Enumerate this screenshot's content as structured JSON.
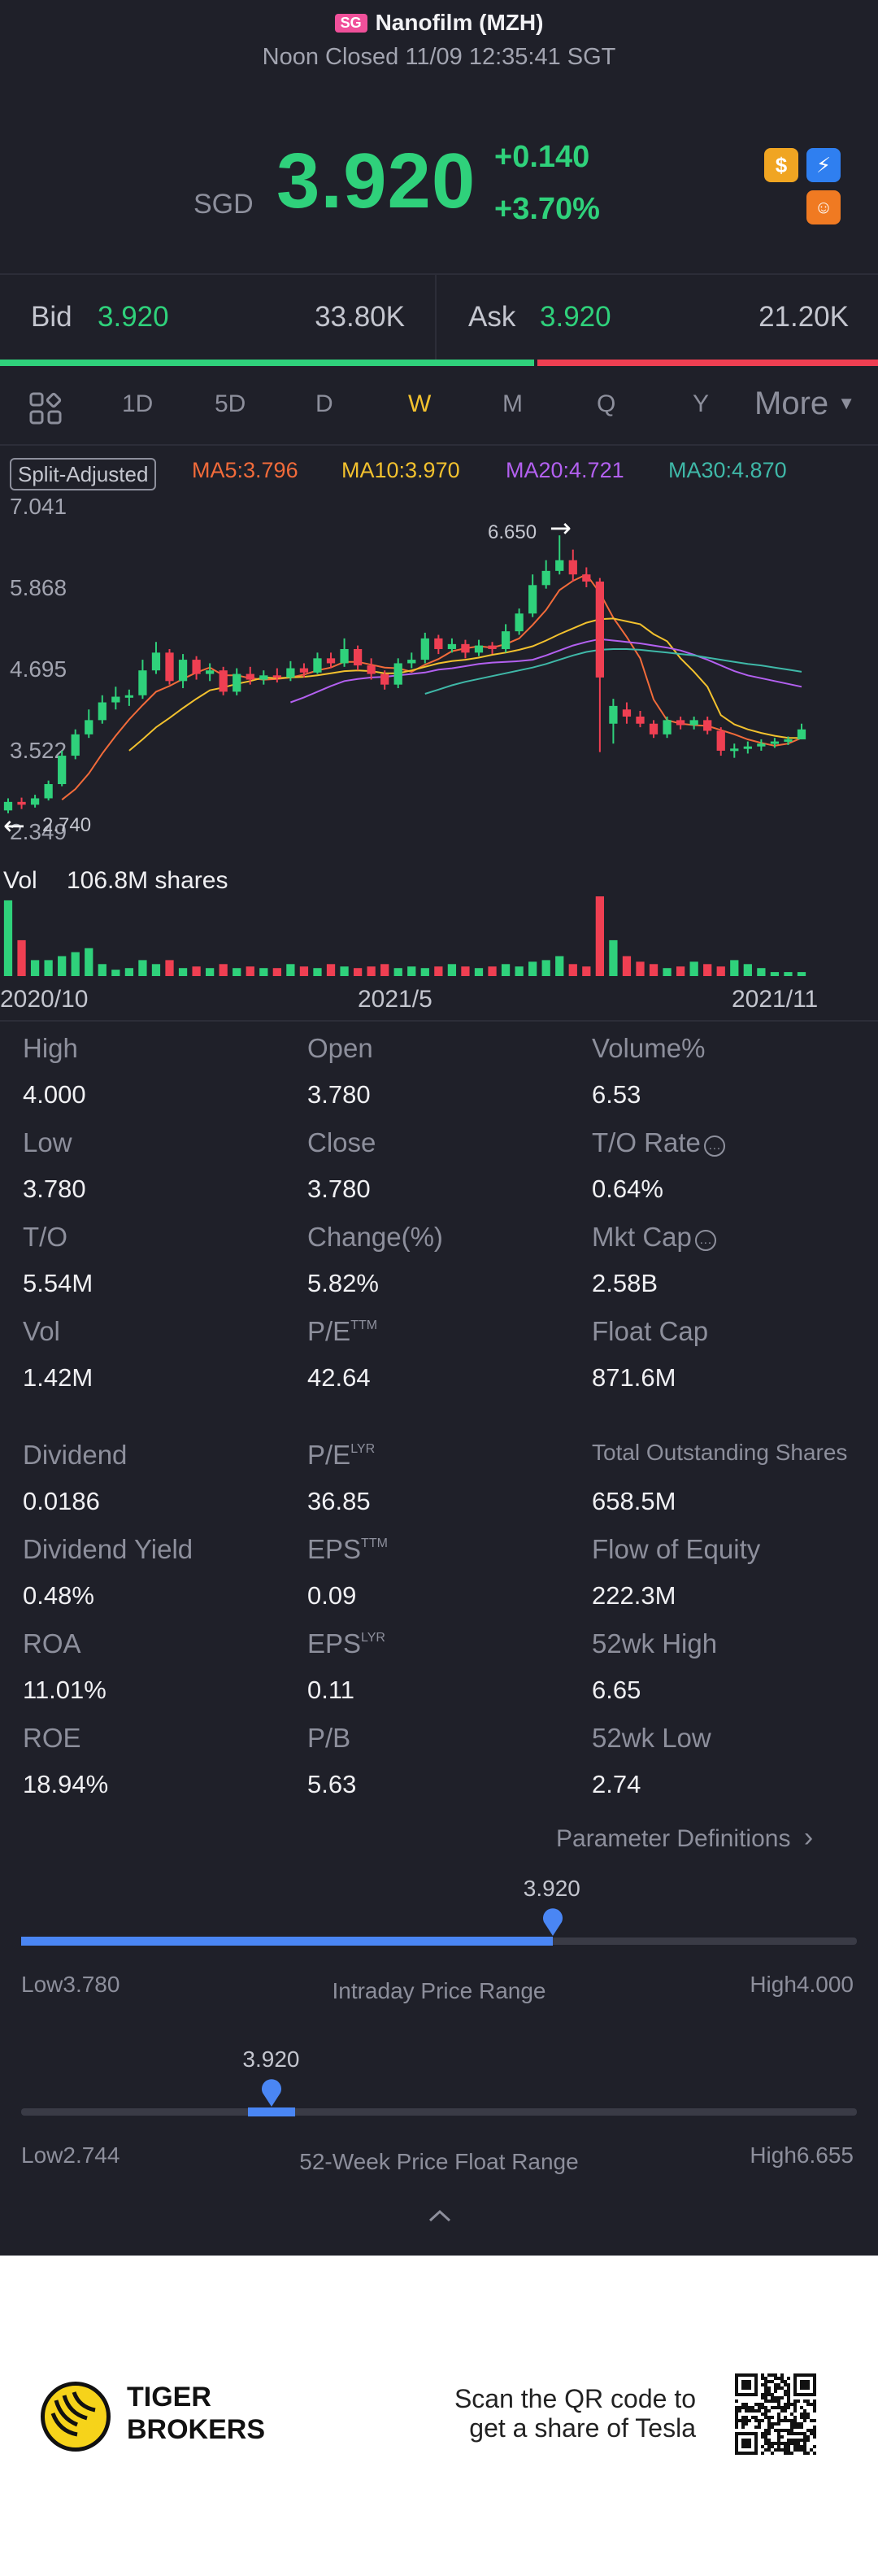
{
  "header": {
    "market_badge": "SG",
    "title": "Nanofilm (MZH)",
    "status": "Noon Closed 11/09 12:35:41 SGT"
  },
  "quote": {
    "currency": "SGD",
    "price": "3.920",
    "change": "+0.140",
    "change_pct": "+3.70%"
  },
  "bidask": {
    "bid_label": "Bid",
    "bid_price": "3.920",
    "bid_size": "33.80K",
    "ask_label": "Ask",
    "ask_price": "3.920",
    "ask_size": "21.20K",
    "bid_ratio": 0.61
  },
  "tabs": {
    "items": [
      "1D",
      "5D",
      "D",
      "W",
      "M",
      "Q",
      "Y"
    ],
    "active": "W",
    "more": "More"
  },
  "chart": {
    "split_label": "Split-Adjusted",
    "ma5": "MA5:3.796",
    "ma10": "MA10:3.970",
    "ma20": "MA20:4.721",
    "ma30": "MA30:4.870",
    "y_ticks": [
      "7.041",
      "5.868",
      "4.695",
      "3.522",
      "2.349"
    ],
    "high_marker": "6.650",
    "low_marker": "2.740",
    "vol_label": "Vol",
    "vol_value": "106.8M shares",
    "x_ticks": [
      "2020/10",
      "2021/5",
      "2021/11"
    ],
    "colors": {
      "up": "#2fd17b",
      "down": "#ef3f52",
      "ma5": "#f26b3a",
      "ma10": "#f2c12e",
      "ma20": "#b360f0",
      "ma30": "#3fb8a8"
    }
  },
  "chart_data": {
    "type": "candlestick",
    "ylim": [
      2.349,
      7.041
    ],
    "x_ticks": [
      "2020/10",
      "2021/5",
      "2021/11"
    ],
    "candles": [
      {
        "o": 2.78,
        "c": 2.9,
        "h": 2.95,
        "l": 2.74
      },
      {
        "o": 2.9,
        "c": 2.86,
        "h": 2.96,
        "l": 2.8
      },
      {
        "o": 2.86,
        "c": 2.95,
        "h": 3.0,
        "l": 2.82
      },
      {
        "o": 2.95,
        "c": 3.15,
        "h": 3.2,
        "l": 2.92
      },
      {
        "o": 3.15,
        "c": 3.55,
        "h": 3.62,
        "l": 3.12
      },
      {
        "o": 3.55,
        "c": 3.85,
        "h": 3.92,
        "l": 3.5
      },
      {
        "o": 3.85,
        "c": 4.05,
        "h": 4.2,
        "l": 3.8
      },
      {
        "o": 4.05,
        "c": 4.3,
        "h": 4.4,
        "l": 4.0
      },
      {
        "o": 4.3,
        "c": 4.38,
        "h": 4.52,
        "l": 4.2
      },
      {
        "o": 4.38,
        "c": 4.4,
        "h": 4.48,
        "l": 4.25
      },
      {
        "o": 4.4,
        "c": 4.75,
        "h": 4.9,
        "l": 4.35
      },
      {
        "o": 4.75,
        "c": 5.0,
        "h": 5.15,
        "l": 4.7
      },
      {
        "o": 5.0,
        "c": 4.6,
        "h": 5.05,
        "l": 4.55
      },
      {
        "o": 4.6,
        "c": 4.9,
        "h": 4.98,
        "l": 4.5
      },
      {
        "o": 4.9,
        "c": 4.7,
        "h": 4.95,
        "l": 4.62
      },
      {
        "o": 4.7,
        "c": 4.75,
        "h": 4.85,
        "l": 4.6
      },
      {
        "o": 4.75,
        "c": 4.45,
        "h": 4.8,
        "l": 4.4
      },
      {
        "o": 4.45,
        "c": 4.7,
        "h": 4.78,
        "l": 4.4
      },
      {
        "o": 4.7,
        "c": 4.62,
        "h": 4.8,
        "l": 4.55
      },
      {
        "o": 4.62,
        "c": 4.68,
        "h": 4.75,
        "l": 4.55
      },
      {
        "o": 4.68,
        "c": 4.65,
        "h": 4.78,
        "l": 4.58
      },
      {
        "o": 4.65,
        "c": 4.78,
        "h": 4.88,
        "l": 4.6
      },
      {
        "o": 4.78,
        "c": 4.72,
        "h": 4.85,
        "l": 4.65
      },
      {
        "o": 4.72,
        "c": 4.92,
        "h": 5.0,
        "l": 4.7
      },
      {
        "o": 4.92,
        "c": 4.85,
        "h": 5.0,
        "l": 4.78
      },
      {
        "o": 4.85,
        "c": 5.05,
        "h": 5.2,
        "l": 4.8
      },
      {
        "o": 5.05,
        "c": 4.82,
        "h": 5.1,
        "l": 4.75
      },
      {
        "o": 4.82,
        "c": 4.7,
        "h": 4.92,
        "l": 4.62
      },
      {
        "o": 4.7,
        "c": 4.55,
        "h": 4.75,
        "l": 4.48
      },
      {
        "o": 4.55,
        "c": 4.85,
        "h": 4.92,
        "l": 4.5
      },
      {
        "o": 4.85,
        "c": 4.9,
        "h": 5.0,
        "l": 4.78
      },
      {
        "o": 4.9,
        "c": 5.2,
        "h": 5.28,
        "l": 4.85
      },
      {
        "o": 5.2,
        "c": 5.05,
        "h": 5.25,
        "l": 4.98
      },
      {
        "o": 5.05,
        "c": 5.12,
        "h": 5.2,
        "l": 5.0
      },
      {
        "o": 5.12,
        "c": 5.0,
        "h": 5.18,
        "l": 4.92
      },
      {
        "o": 5.0,
        "c": 5.1,
        "h": 5.18,
        "l": 4.95
      },
      {
        "o": 5.1,
        "c": 5.05,
        "h": 5.15,
        "l": 4.98
      },
      {
        "o": 5.05,
        "c": 5.3,
        "h": 5.4,
        "l": 5.0
      },
      {
        "o": 5.3,
        "c": 5.55,
        "h": 5.62,
        "l": 5.25
      },
      {
        "o": 5.55,
        "c": 5.95,
        "h": 6.1,
        "l": 5.5
      },
      {
        "o": 5.95,
        "c": 6.15,
        "h": 6.3,
        "l": 5.9
      },
      {
        "o": 6.15,
        "c": 6.3,
        "h": 6.65,
        "l": 6.1
      },
      {
        "o": 6.3,
        "c": 6.1,
        "h": 6.45,
        "l": 6.0
      },
      {
        "o": 6.1,
        "c": 6.0,
        "h": 6.2,
        "l": 5.92
      },
      {
        "o": 6.0,
        "c": 4.65,
        "h": 6.05,
        "l": 3.6
      },
      {
        "o": 4.0,
        "c": 4.25,
        "h": 4.35,
        "l": 3.72
      },
      {
        "o": 4.2,
        "c": 4.1,
        "h": 4.3,
        "l": 4.0
      },
      {
        "o": 4.1,
        "c": 4.0,
        "h": 4.18,
        "l": 3.95
      },
      {
        "o": 4.0,
        "c": 3.85,
        "h": 4.05,
        "l": 3.8
      },
      {
        "o": 3.85,
        "c": 4.05,
        "h": 4.1,
        "l": 3.8
      },
      {
        "o": 4.05,
        "c": 3.98,
        "h": 4.1,
        "l": 3.92
      },
      {
        "o": 3.98,
        "c": 4.05,
        "h": 4.1,
        "l": 3.92
      },
      {
        "o": 4.05,
        "c": 3.9,
        "h": 4.1,
        "l": 3.85
      },
      {
        "o": 3.9,
        "c": 3.62,
        "h": 3.95,
        "l": 3.55
      },
      {
        "o": 3.62,
        "c": 3.65,
        "h": 3.72,
        "l": 3.52
      },
      {
        "o": 3.65,
        "c": 3.68,
        "h": 3.75,
        "l": 3.58
      },
      {
        "o": 3.68,
        "c": 3.72,
        "h": 3.78,
        "l": 3.62
      },
      {
        "o": 3.72,
        "c": 3.75,
        "h": 3.8,
        "l": 3.66
      },
      {
        "o": 3.75,
        "c": 3.78,
        "h": 3.82,
        "l": 3.7
      },
      {
        "o": 3.78,
        "c": 3.92,
        "h": 4.0,
        "l": 3.78
      }
    ],
    "volume_rel": [
      0.95,
      0.45,
      0.2,
      0.2,
      0.25,
      0.3,
      0.35,
      0.15,
      0.08,
      0.1,
      0.2,
      0.15,
      0.2,
      0.1,
      0.12,
      0.1,
      0.15,
      0.1,
      0.12,
      0.1,
      0.1,
      0.15,
      0.12,
      0.1,
      0.15,
      0.12,
      0.1,
      0.12,
      0.15,
      0.1,
      0.12,
      0.1,
      0.12,
      0.15,
      0.12,
      0.1,
      0.12,
      0.15,
      0.12,
      0.18,
      0.2,
      0.25,
      0.15,
      0.12,
      1.0,
      0.45,
      0.25,
      0.18,
      0.15,
      0.1,
      0.12,
      0.18,
      0.15,
      0.12,
      0.2,
      0.15,
      0.1,
      0.05,
      0.05,
      0.05
    ],
    "ma_series": [
      {
        "name": "MA5",
        "values": [
          null,
          null,
          null,
          null,
          2.93,
          3.08,
          3.3,
          3.58,
          3.83,
          4.06,
          4.26,
          4.45,
          4.53,
          4.63,
          4.72,
          4.79,
          4.68,
          4.68,
          4.64,
          4.62,
          4.63,
          4.65,
          4.69,
          4.75,
          4.79,
          4.87,
          4.87,
          4.83,
          4.79,
          4.78,
          4.73,
          4.83,
          4.91,
          5.02,
          5.06,
          5.09,
          5.07,
          5.12,
          5.2,
          5.39,
          5.6,
          5.88,
          6.01,
          6.1,
          5.84,
          5.49,
          5.22,
          4.92,
          4.34,
          4.05,
          4.0,
          3.98,
          3.97,
          3.91,
          3.85,
          3.78,
          3.73,
          3.69,
          3.72,
          3.8
        ]
      },
      {
        "name": "MA10",
        "values": [
          null,
          null,
          null,
          null,
          null,
          null,
          null,
          null,
          null,
          3.62,
          3.78,
          3.95,
          4.08,
          4.22,
          4.35,
          4.47,
          4.51,
          4.56,
          4.6,
          4.65,
          4.64,
          4.65,
          4.66,
          4.68,
          4.71,
          4.74,
          4.75,
          4.74,
          4.71,
          4.71,
          4.75,
          4.8,
          4.85,
          4.88,
          4.9,
          4.93,
          4.97,
          5.0,
          5.04,
          5.09,
          5.17,
          5.26,
          5.34,
          5.42,
          5.47,
          5.48,
          5.44,
          5.4,
          5.26,
          5.16,
          4.92,
          4.73,
          4.52,
          4.12,
          3.99,
          3.92,
          3.87,
          3.83,
          3.8,
          3.8
        ]
      },
      {
        "name": "MA20",
        "values": [
          null,
          null,
          null,
          null,
          null,
          null,
          null,
          null,
          null,
          null,
          null,
          null,
          null,
          null,
          null,
          null,
          null,
          null,
          null,
          4.13,
          4.22,
          4.3,
          4.37,
          4.45,
          4.53,
          4.6,
          4.63,
          4.65,
          4.66,
          4.68,
          4.7,
          4.72,
          4.76,
          4.78,
          4.81,
          4.84,
          4.86,
          4.87,
          4.88,
          4.9,
          4.96,
          5.03,
          5.1,
          5.15,
          5.19,
          5.17,
          5.15,
          5.13,
          5.1,
          5.07,
          5.03,
          4.97,
          4.9,
          4.82,
          4.74,
          4.68,
          4.64,
          4.6,
          4.56,
          4.52
        ]
      },
      {
        "name": "MA30",
        "values": [
          null,
          null,
          null,
          null,
          null,
          null,
          null,
          null,
          null,
          null,
          null,
          null,
          null,
          null,
          null,
          null,
          null,
          null,
          null,
          null,
          null,
          null,
          null,
          null,
          null,
          null,
          null,
          null,
          null,
          4.3,
          4.36,
          4.42,
          4.48,
          4.54,
          4.59,
          4.63,
          4.67,
          4.71,
          4.75,
          4.79,
          4.84,
          4.9,
          4.96,
          5.01,
          5.04,
          5.05,
          5.05,
          5.04,
          5.02,
          5.0,
          4.98,
          4.96,
          4.93,
          4.9,
          4.87,
          4.84,
          4.82,
          4.79,
          4.76,
          4.73
        ]
      }
    ]
  },
  "stats": {
    "col1": [
      {
        "label": "High",
        "value": "4.000"
      },
      {
        "label": "Low",
        "value": "3.780"
      },
      {
        "label": "T/O",
        "value": "5.54M"
      },
      {
        "label": "Vol",
        "value": "1.42M"
      },
      {
        "label": "Dividend",
        "value": "0.0186"
      },
      {
        "label": "Dividend Yield",
        "value": "0.48%"
      },
      {
        "label": "ROA",
        "value": "11.01%"
      },
      {
        "label": "ROE",
        "value": "18.94%"
      }
    ],
    "col2": [
      {
        "label": "Open",
        "value": "3.780",
        "sup": ""
      },
      {
        "label": "Close",
        "value": "3.780",
        "sup": ""
      },
      {
        "label": "Change(%)",
        "value": "5.82%",
        "sup": ""
      },
      {
        "label": "P/E",
        "value": "42.64",
        "sup": "TTM"
      },
      {
        "label": "P/E",
        "value": "36.85",
        "sup": "LYR"
      },
      {
        "label": "EPS",
        "value": "0.09",
        "sup": "TTM"
      },
      {
        "label": "EPS",
        "value": "0.11",
        "sup": "LYR"
      },
      {
        "label": "P/B",
        "value": "5.63",
        "sup": ""
      }
    ],
    "col3": [
      {
        "label": "Volume%",
        "value": "6.53"
      },
      {
        "label": "T/O Rate",
        "value": "0.64%"
      },
      {
        "label": "Mkt Cap",
        "value": "2.58B"
      },
      {
        "label": "Float Cap",
        "value": "871.6M"
      },
      {
        "label": "Total Outstanding Shares",
        "value": "658.5M"
      },
      {
        "label": "Flow of Equity",
        "value": "222.3M"
      },
      {
        "label": "52wk High",
        "value": "6.65"
      },
      {
        "label": "52wk Low",
        "value": "2.74"
      }
    ],
    "param_link": "Parameter Definitions"
  },
  "intraday_range": {
    "current": "3.920",
    "low_label": "Low",
    "low": "3.780",
    "high_label": "High",
    "high": "4.000",
    "title": "Intraday Price Range",
    "position": 0.636
  },
  "week52_range": {
    "current": "3.920",
    "low_label": "Low",
    "low": "2.744",
    "high_label": "High",
    "high": "6.655",
    "title": "52-Week Price Float Range",
    "position": 0.3
  },
  "footer": {
    "brand_line1": "TIGER",
    "brand_line2": "BROKERS",
    "scan_line1": "Scan the QR code to",
    "scan_line2": "get a share of Tesla"
  }
}
